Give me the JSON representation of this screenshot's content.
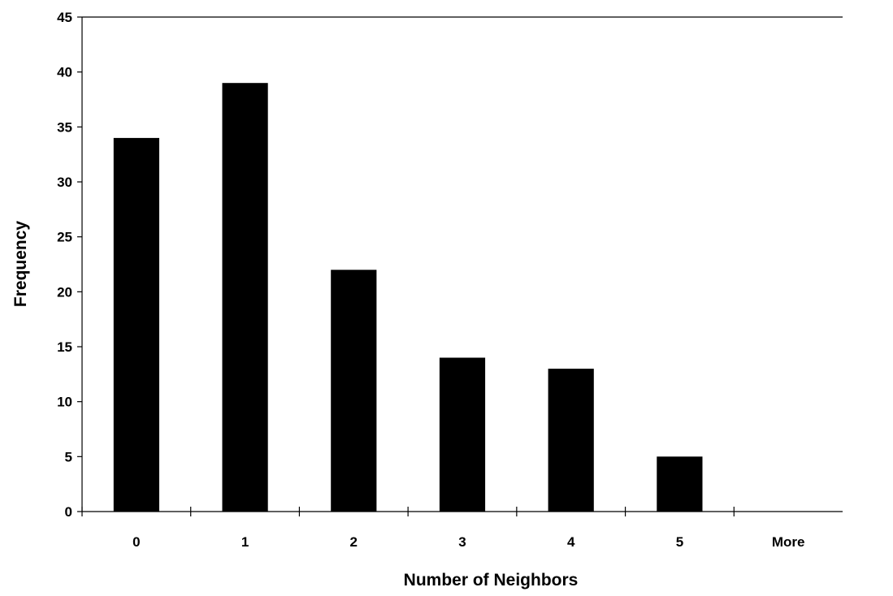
{
  "chart_data": {
    "type": "bar",
    "title": "",
    "xlabel": "Number of Neighbors",
    "ylabel": "Frequency",
    "categories": [
      "0",
      "1",
      "2",
      "3",
      "4",
      "5",
      "More"
    ],
    "values": [
      34,
      39,
      22,
      14,
      13,
      5,
      0
    ],
    "ylim": [
      0,
      45
    ],
    "yticks": [
      0,
      5,
      10,
      15,
      20,
      25,
      30,
      35,
      40,
      45
    ],
    "grid": false,
    "legend": "none",
    "bar_color": "#000000",
    "axis_color": "#000000",
    "background": "#ffffff"
  }
}
